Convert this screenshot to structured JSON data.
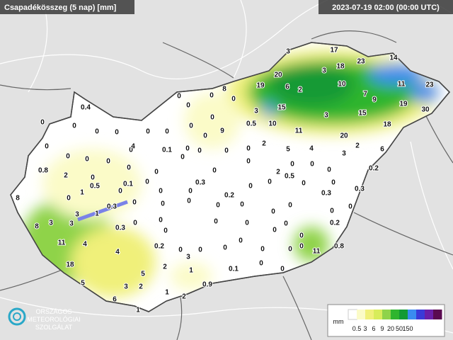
{
  "header": {
    "title": "Csapadékösszeg (5 nap) [mm]",
    "timestamp": "2023-07-19 02:00 (00:00 UTC)"
  },
  "logo": {
    "lines": [
      "ORSZÁGOS",
      "METEOROLÓGIAI",
      "SZOLGÁLAT"
    ]
  },
  "legend": {
    "unit": "mm",
    "ticks": [
      "0.5",
      "3",
      "6",
      "9",
      "20",
      "50",
      "150"
    ],
    "colors": [
      "#ffffff",
      "#fbfbc8",
      "#f0f07a",
      "#d8ec5a",
      "#8fd34a",
      "#2fb52f",
      "#139a35",
      "#3a8cf0",
      "#3a3ad8",
      "#6a1fa8",
      "#5a0a50"
    ]
  },
  "map": {
    "stations": [
      "3",
      "17",
      "23",
      "14",
      "20",
      "3",
      "18",
      "8",
      "19",
      "6",
      "2",
      "10",
      "11",
      "23",
      "7",
      "9",
      "19",
      "30",
      "3",
      "15",
      "15",
      "3",
      "0.5",
      "10",
      "11",
      "18",
      "20",
      "9",
      "2",
      "5",
      "4",
      "2",
      "6",
      "3",
      "0.4",
      "0",
      "0",
      "0",
      "0",
      "0",
      "0",
      "0",
      "0",
      "0",
      "0",
      "0",
      "0",
      "0",
      "0",
      "0",
      "0",
      "0",
      "0",
      "4",
      "0.1",
      "0",
      "0",
      "0",
      "0",
      "0",
      "0",
      "0",
      "0",
      "0",
      "0",
      "0.2",
      "2",
      "0.5",
      "0.8",
      "2",
      "0",
      "0",
      "0",
      "0",
      "0",
      "0",
      "0",
      "1",
      "0.5",
      "0.1",
      "0",
      "0.3",
      "0",
      "0.3",
      "0.3",
      "0",
      "0.2",
      "8",
      "0",
      "0",
      "0",
      "0",
      "0",
      "0",
      "0",
      "0.3",
      "3",
      "1",
      "0",
      "0",
      "0",
      "0",
      "8",
      "3",
      "3",
      "0.3",
      "0",
      "0",
      "0",
      "0",
      "0",
      "0",
      "0",
      "0.2",
      "0",
      "11",
      "4",
      "0.2",
      "0",
      "0",
      "0",
      "0",
      "0",
      "0.8",
      "11",
      "4",
      "0",
      "0",
      "18",
      "3",
      "2",
      "0",
      "0.1",
      "0",
      "1",
      "5",
      "5",
      "1",
      "0.9",
      "3",
      "2",
      "6",
      "2",
      "1"
    ]
  }
}
